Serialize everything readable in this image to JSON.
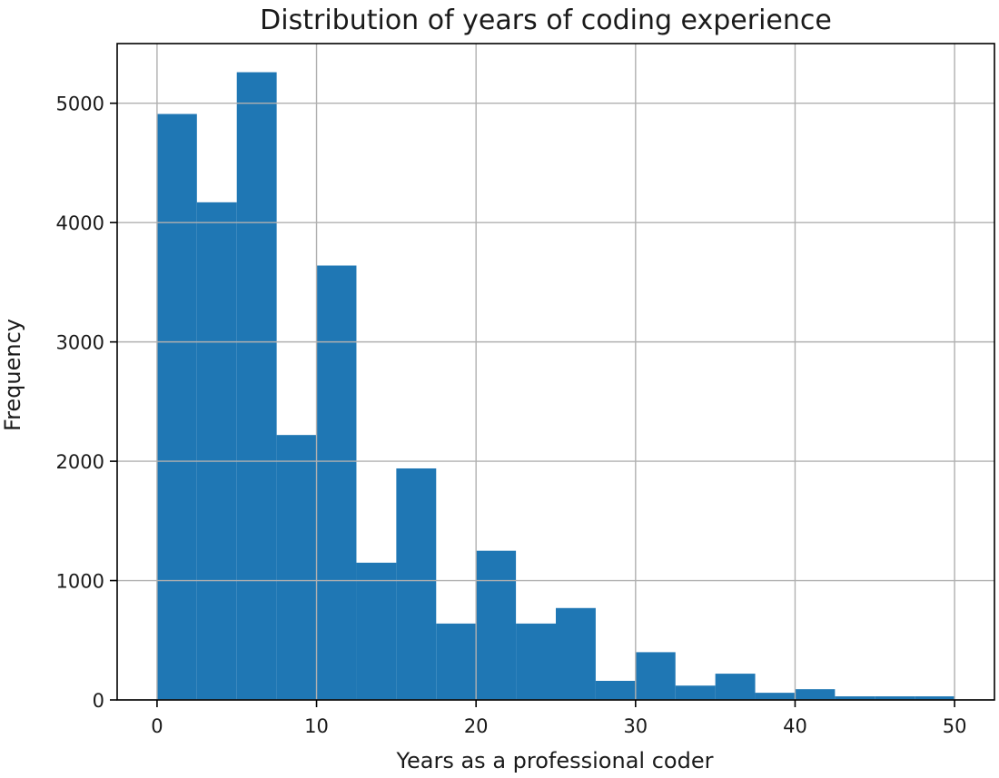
{
  "chart_data": {
    "type": "bar",
    "title": "Distribution of years of coding experience",
    "xlabel": "Years as a professional coder",
    "ylabel": "Frequency",
    "bin_edges": [
      0,
      2.5,
      5,
      7.5,
      10,
      12.5,
      15,
      17.5,
      20,
      22.5,
      25,
      27.5,
      30,
      32.5,
      35,
      37.5,
      40,
      42.5,
      45,
      47.5,
      50
    ],
    "values": [
      4910,
      4170,
      5260,
      2220,
      3640,
      1150,
      1940,
      640,
      1250,
      640,
      770,
      160,
      400,
      120,
      220,
      60,
      90,
      30,
      30,
      30
    ],
    "xlim": [
      -2.5,
      52.5
    ],
    "ylim": [
      0,
      5500
    ],
    "xticks": [
      0,
      10,
      20,
      30,
      40,
      50
    ],
    "yticks": [
      0,
      1000,
      2000,
      3000,
      4000,
      5000
    ],
    "grid": true,
    "bar_color": "#1f77b4"
  }
}
